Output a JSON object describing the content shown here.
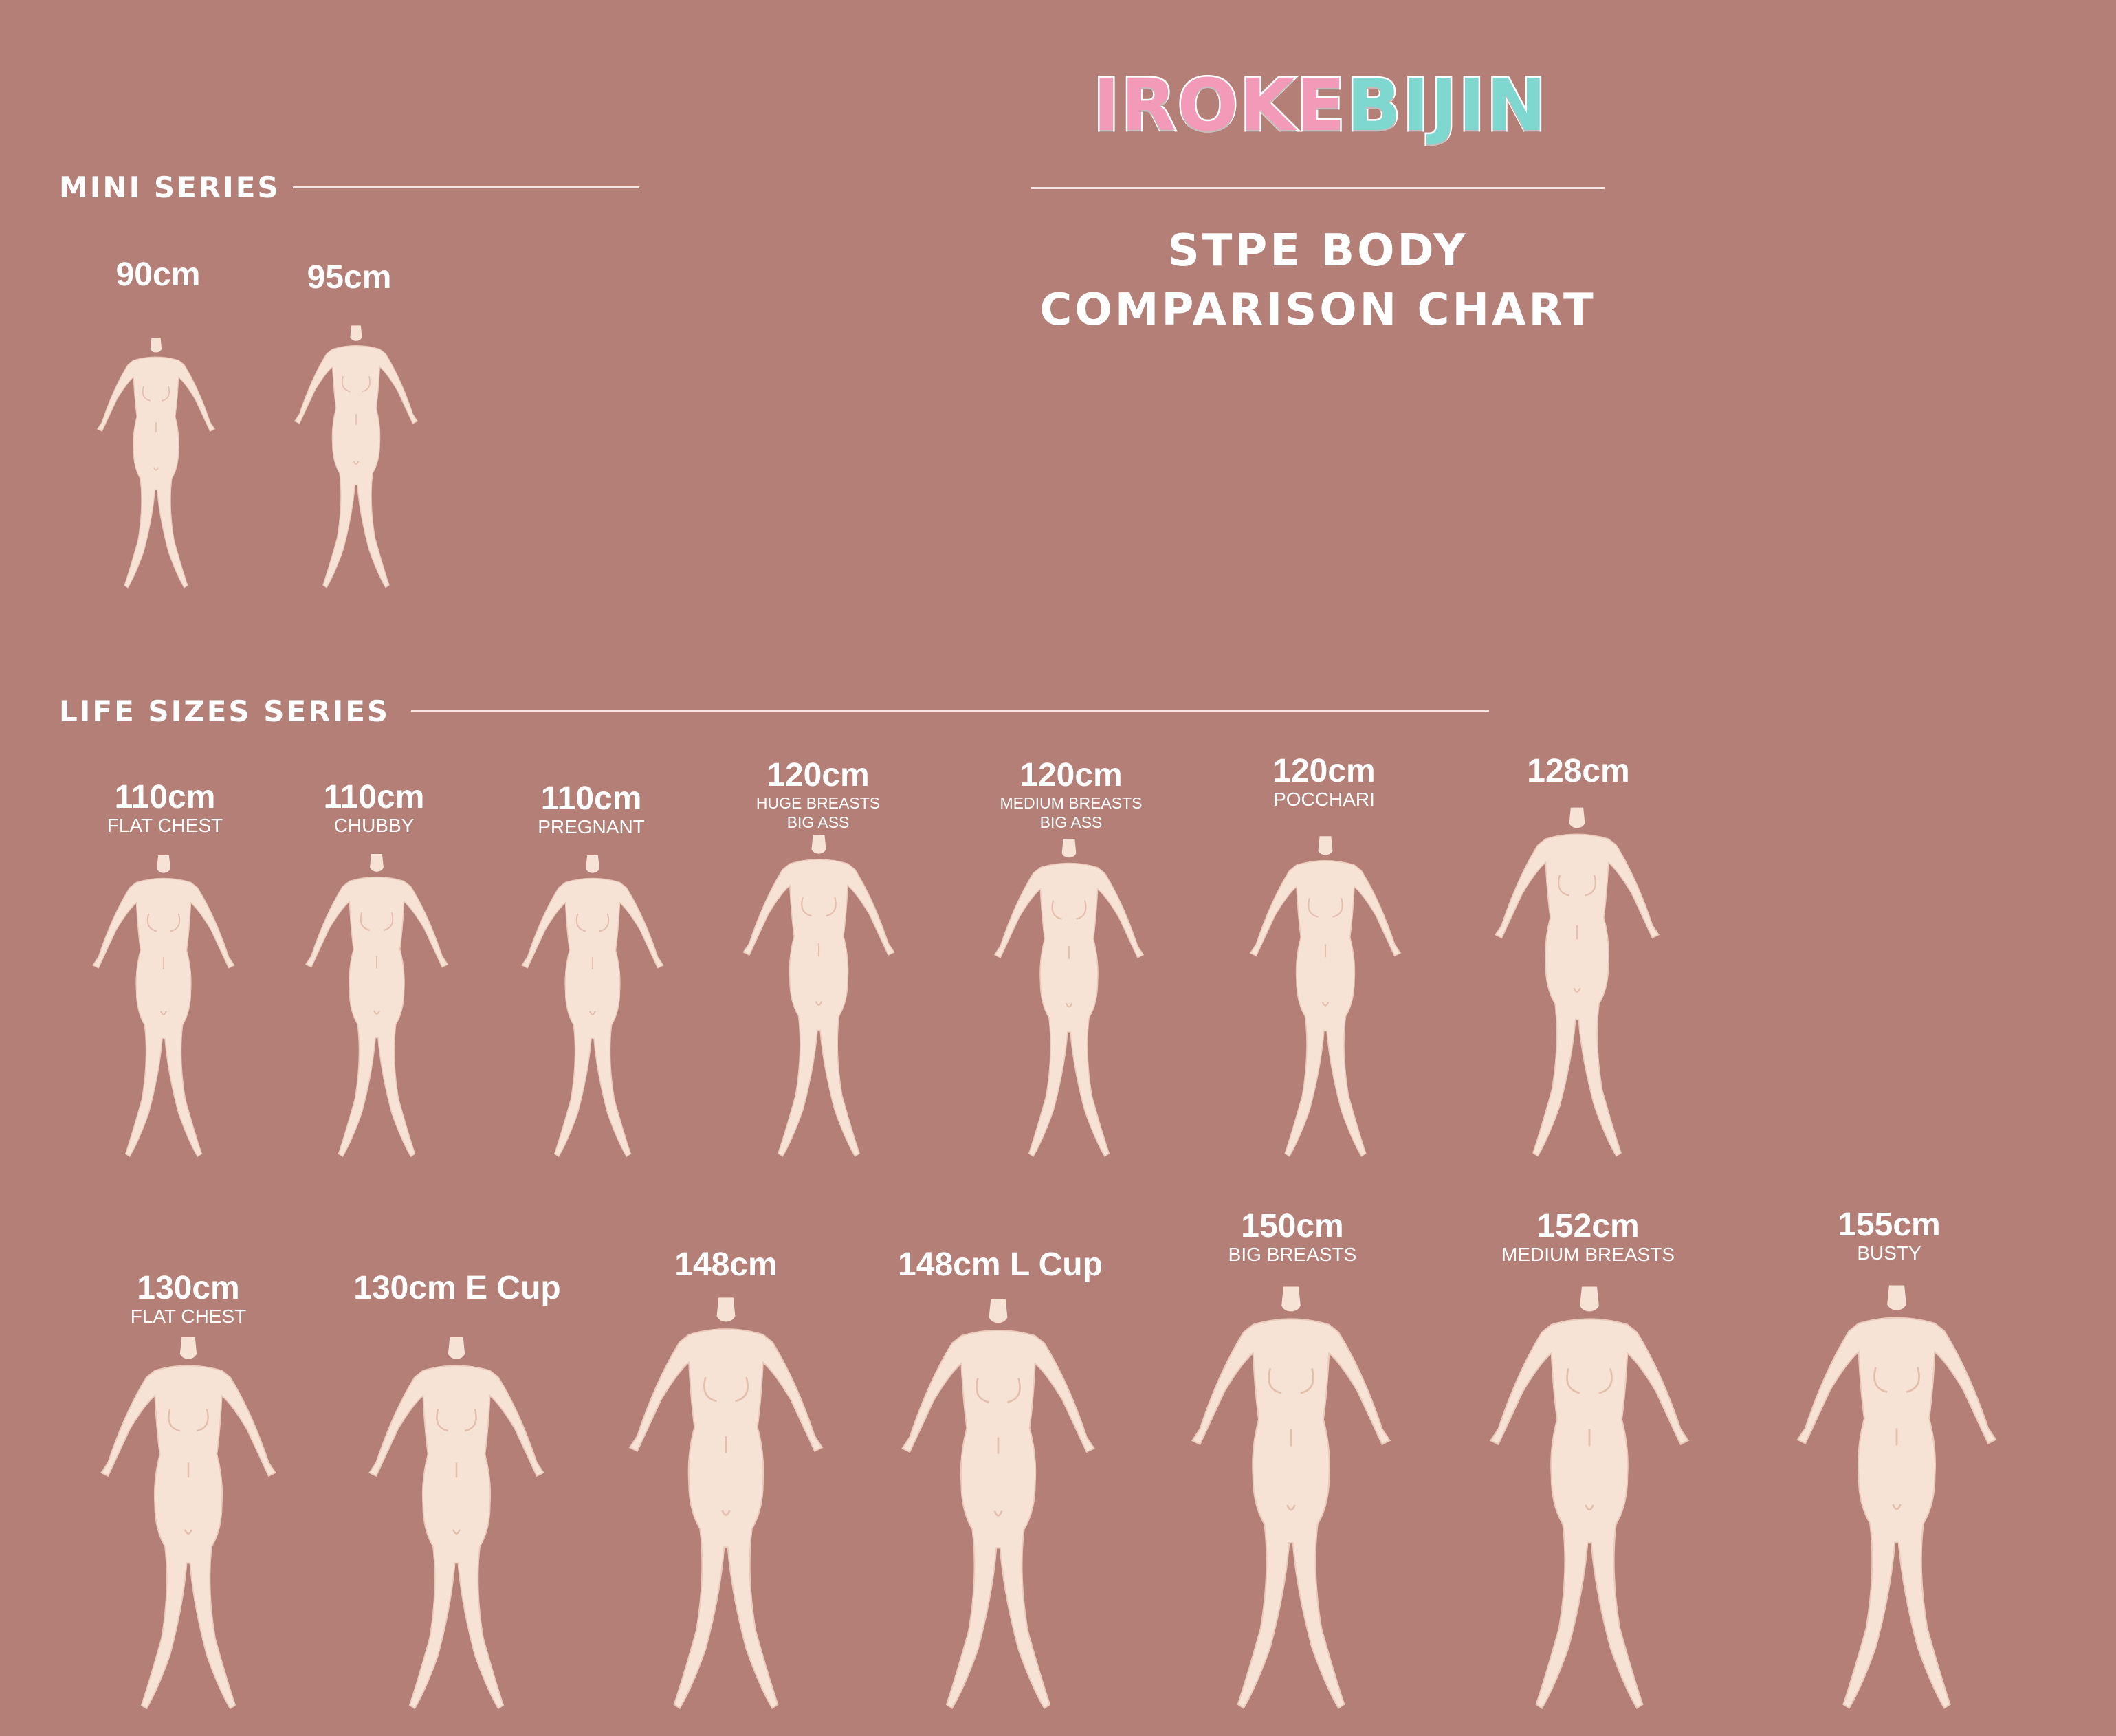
{
  "brand": {
    "logo_text_pink": "IROKE",
    "logo_text_teal": "BIJIN"
  },
  "title": {
    "line1": "STPE BODY",
    "line2": "COMPARISON CHART"
  },
  "mini_series": {
    "heading": "MINI SERIES",
    "items": [
      {
        "size": "90cm"
      },
      {
        "size": "95cm"
      }
    ]
  },
  "life_series": {
    "heading": "LIFE SIZES SERIES",
    "row1": [
      {
        "size": "110cm",
        "sub": "FLAT CHEST"
      },
      {
        "size": "110cm",
        "sub": "CHUBBY"
      },
      {
        "size": "110cm",
        "sub": "PREGNANT"
      },
      {
        "size": "120cm",
        "sub1": "HUGE BREASTS",
        "sub2": "BIG ASS"
      },
      {
        "size": "120cm",
        "sub1": "MEDIUM BREASTS",
        "sub2": "BIG ASS"
      },
      {
        "size": "120cm",
        "sub": "POCCHARI"
      },
      {
        "size": "128cm"
      }
    ],
    "row2": [
      {
        "size": "130cm",
        "sub": "FLAT CHEST"
      },
      {
        "size": "130cm E Cup"
      },
      {
        "size": "148cm"
      },
      {
        "size": "148cm L Cup"
      },
      {
        "size": "150cm",
        "sub": "BIG BREASTS"
      },
      {
        "size": "152cm",
        "sub": "MEDIUM BREASTS"
      },
      {
        "size": "155cm",
        "sub": "BUSTY"
      }
    ]
  },
  "colors": {
    "background": "#b47f77",
    "figure": "#f7e2d6",
    "figure_shade": "#eacbbb",
    "rule": "#f4e6e2"
  }
}
